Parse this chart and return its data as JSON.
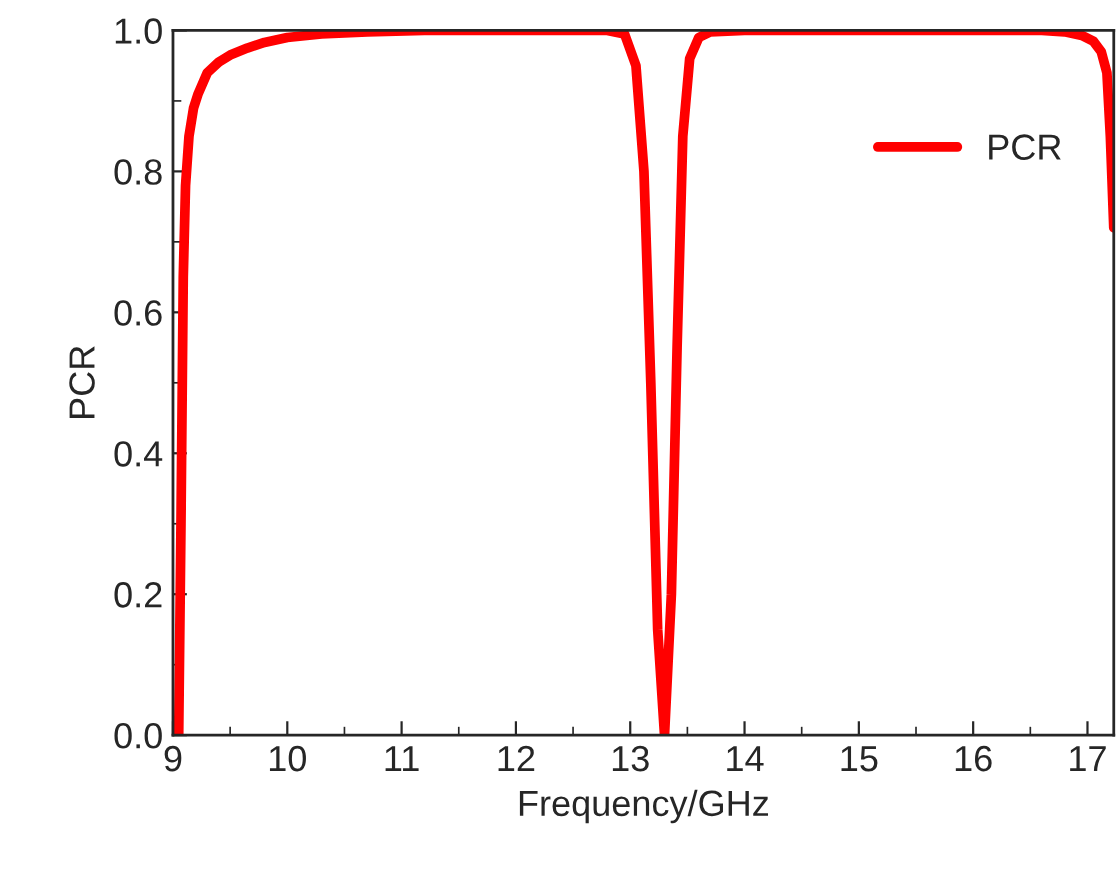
{
  "chart_data": {
    "type": "line",
    "xlabel": "Frequency/GHz",
    "ylabel": "PCR",
    "xlim": [
      9,
      17.23
    ],
    "xticks": [
      9,
      10,
      11,
      12,
      13,
      14,
      15,
      16,
      17
    ],
    "ylim": [
      0,
      1.0
    ],
    "yticks": [
      {
        "value": 0,
        "label": "0.0"
      },
      {
        "value": 0.2,
        "label": "0.2"
      },
      {
        "value": 0.4,
        "label": "0.4"
      },
      {
        "value": 0.6,
        "label": "0.6"
      },
      {
        "value": 0.8,
        "label": "0.8"
      },
      {
        "value": 1.0,
        "label": "1.0"
      }
    ],
    "grid": false,
    "legend": "top right",
    "marker": "none",
    "line_style": "solid",
    "series": [
      {
        "name": "PCR",
        "color": "#ff0000",
        "x": [
          9.03,
          9.05,
          9.07,
          9.09,
          9.11,
          9.14,
          9.18,
          9.22,
          9.3,
          9.4,
          9.5,
          9.65,
          9.8,
          10.0,
          10.3,
          10.7,
          11.2,
          12.0,
          12.8,
          12.95,
          13.05,
          13.12,
          13.18,
          13.24,
          13.3,
          13.36,
          13.41,
          13.46,
          13.52,
          13.6,
          13.7,
          14.0,
          15.0,
          16.0,
          16.6,
          16.8,
          16.95,
          17.05,
          17.12,
          17.17,
          17.2,
          17.23
        ],
        "values": [
          0.0,
          0.0,
          0.3,
          0.65,
          0.78,
          0.85,
          0.89,
          0.91,
          0.94,
          0.955,
          0.965,
          0.975,
          0.983,
          0.99,
          0.995,
          0.998,
          1.0,
          1.0,
          1.0,
          0.995,
          0.95,
          0.8,
          0.5,
          0.15,
          0.0,
          0.2,
          0.55,
          0.85,
          0.96,
          0.99,
          0.998,
          1.0,
          1.0,
          1.0,
          1.0,
          0.998,
          0.993,
          0.985,
          0.97,
          0.94,
          0.85,
          0.72
        ]
      }
    ]
  }
}
